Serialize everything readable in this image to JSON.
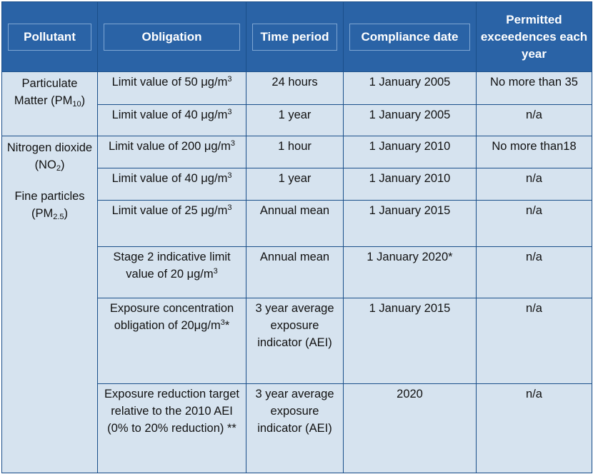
{
  "headers": {
    "pollutant": "Pollutant",
    "obligation": "Obligation",
    "time_period": "Time period",
    "compliance_date": "Compliance date",
    "exceedences": "Permitted exceedences each year"
  },
  "pollutants": {
    "pm10": {
      "name": "Particulate Matter (PM",
      "sub": "10",
      "close": ")"
    },
    "no2": {
      "name": "Nitrogen dioxide (NO",
      "sub": "2",
      "close": ")"
    },
    "pm25": {
      "name": "Fine particles (PM",
      "sub": "2.5",
      "close": ")"
    }
  },
  "rows": [
    {
      "obligation": "Limit value of 50 μg/m",
      "sup": "3",
      "obligation_tail": "",
      "time": "24 hours",
      "date": "1 January 2005",
      "exceed": "No more than 35"
    },
    {
      "obligation": "Limit value of 40 μg/m",
      "sup": "3",
      "obligation_tail": "",
      "time": "1 year",
      "date": "1 January 2005",
      "exceed": "n/a"
    },
    {
      "obligation": "Limit value of 200 μg/m",
      "sup": "3",
      "obligation_tail": "",
      "time": "1 hour",
      "date": "1 January 2010",
      "exceed": "No more than18"
    },
    {
      "obligation": "Limit value of 40 μg/m",
      "sup": "3",
      "obligation_tail": "",
      "time": "1 year",
      "date": "1 January 2010",
      "exceed": "n/a"
    },
    {
      "obligation": "Limit value of 25 μg/m",
      "sup": "3",
      "obligation_tail": "",
      "time": "Annual mean",
      "date": "1 January 2015",
      "exceed": "n/a"
    },
    {
      "obligation": "Stage 2 indicative limit value of 20 μg/m",
      "sup": "3",
      "obligation_tail": "",
      "time": "Annual mean",
      "date": "1 January 2020*",
      "exceed": "n/a"
    },
    {
      "obligation": "Exposure concentration obligation of 20μg/m",
      "sup": "3",
      "obligation_tail": "*",
      "time": "3 year average exposure indicator (AEI)",
      "date": "1 January 2015",
      "exceed": "n/a"
    },
    {
      "obligation": "Exposure reduction target relative to the 2010 AEI (0% to 20% reduction) **",
      "sup": "",
      "obligation_tail": "",
      "time": "3 year average exposure indicator (AEI)",
      "date": "2020",
      "exceed": "n/a"
    }
  ]
}
